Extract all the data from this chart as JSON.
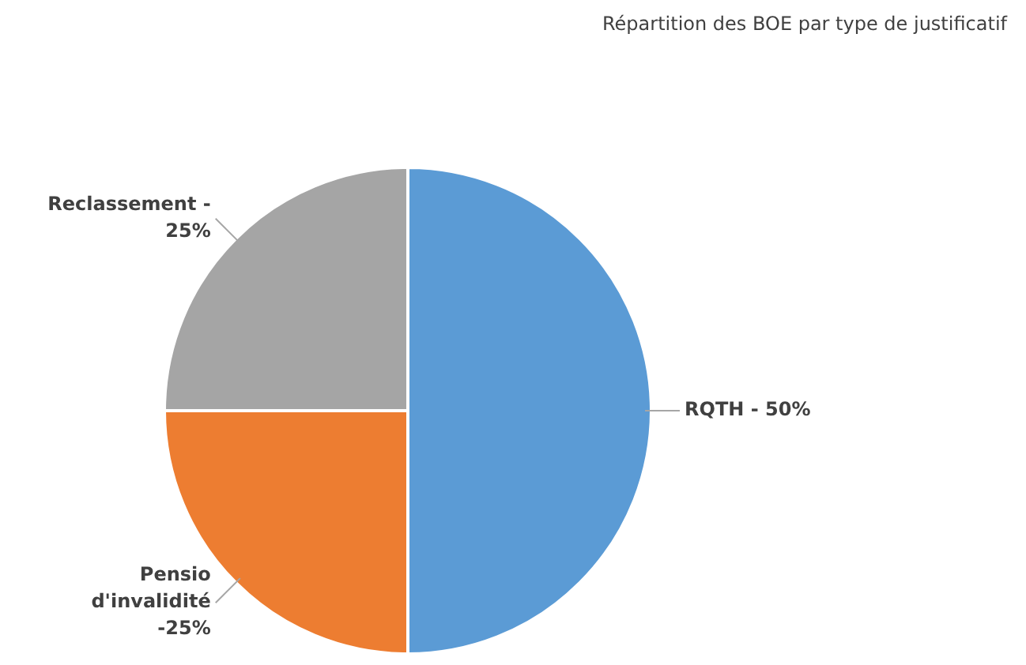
{
  "chart_data": {
    "type": "pie",
    "title": "Répartition des BOE par type de justificatif",
    "categories": [
      "RQTH - 50%",
      "Pensio d'invalidité -25%",
      "Reclassement - 25%"
    ],
    "values": [
      50,
      25,
      25
    ],
    "colors": [
      "#5b9bd5",
      "#ed7d31",
      "#a5a5a5"
    ],
    "legend": false
  }
}
